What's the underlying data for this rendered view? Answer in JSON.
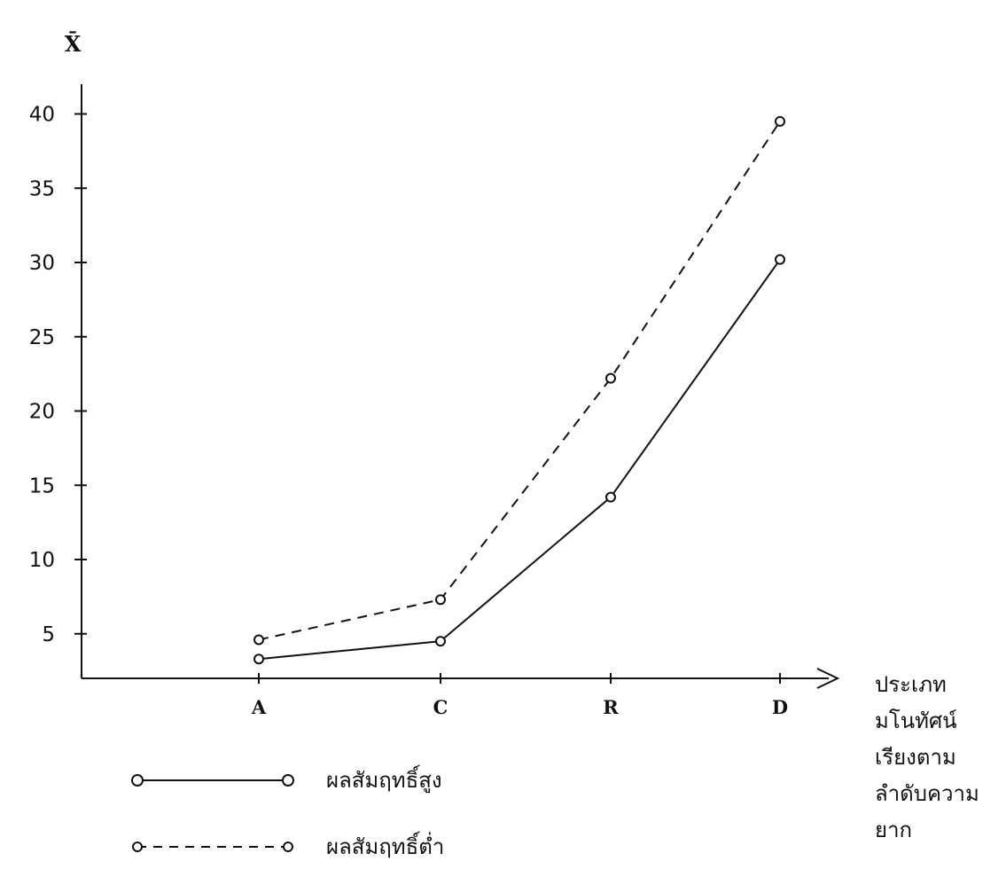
{
  "chart_data": {
    "type": "line",
    "ylabel": "X̄",
    "xlabel_lines": [
      "ประเภท",
      "มโนทัศน์",
      "เรียงตาม",
      "ลำดับความ",
      "ยาก"
    ],
    "categories": [
      "A",
      "C",
      "R",
      "D"
    ],
    "yticks": [
      "5",
      "10",
      "15",
      "20",
      "25",
      "30",
      "35",
      "40"
    ],
    "ylim": [
      2,
      42
    ],
    "series": [
      {
        "name": "ผลสัมฤทธิ์สูง",
        "style": "solid",
        "values": [
          3.3,
          4.5,
          14.2,
          30.2
        ]
      },
      {
        "name": "ผลสัมฤทธิ์ต่ำ",
        "style": "dashed",
        "values": [
          4.6,
          7.3,
          22.2,
          39.5
        ]
      }
    ],
    "grid": false,
    "legend_position": "bottom-left"
  },
  "colors": {
    "line": "#111111",
    "background": "#ffffff"
  }
}
